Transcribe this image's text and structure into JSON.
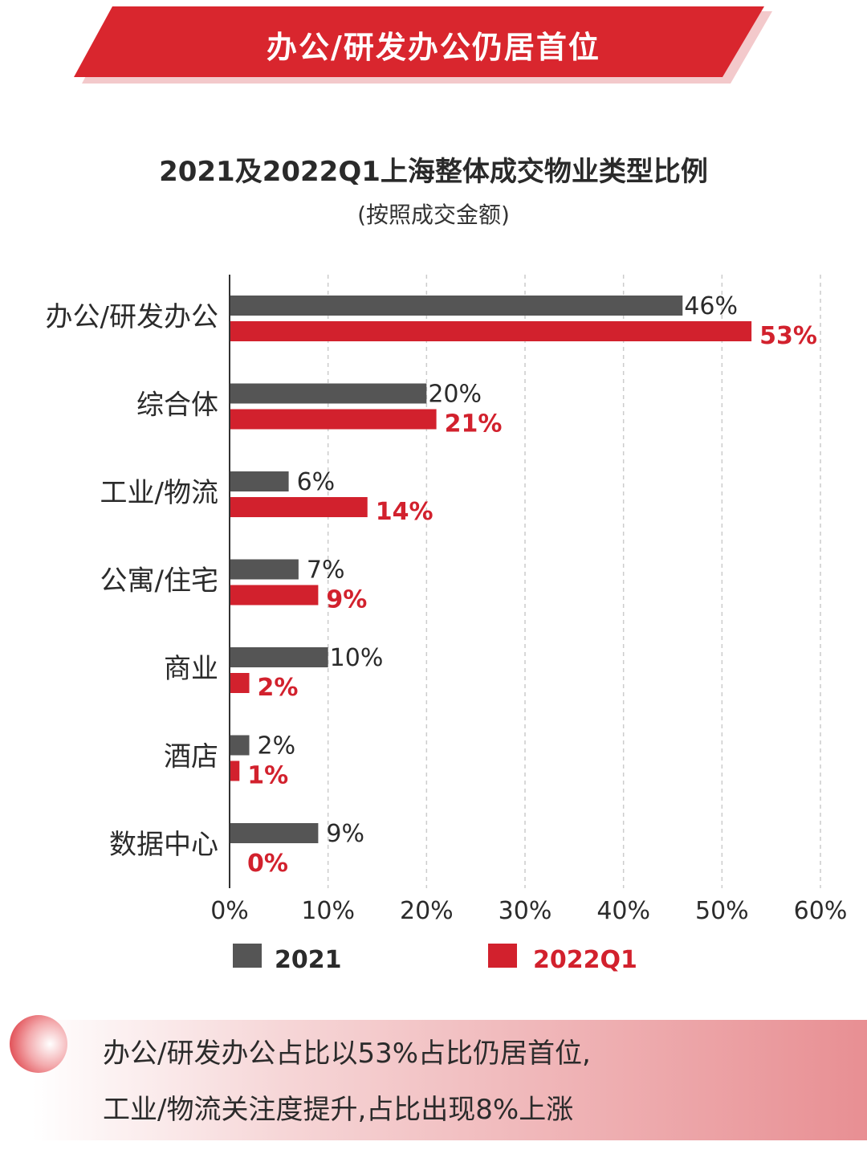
{
  "banner": {
    "title": "办公/研发办公仍居首位"
  },
  "chart_header": {
    "title": "2021及2022Q1上海整体成交物业类型比例",
    "subtitle": "(按照成交金额)"
  },
  "colors": {
    "series_2021": "#555555",
    "series_2022q1": "#d2212d",
    "banner": "#d9262e"
  },
  "chart_data": {
    "type": "bar",
    "orientation": "horizontal",
    "title": "2021及2022Q1上海整体成交物业类型比例",
    "subtitle": "(按照成交金额)",
    "categories": [
      "办公/研发办公",
      "综合体",
      "工业/物流",
      "公寓/住宅",
      "商业",
      "酒店",
      "数据中心"
    ],
    "series": [
      {
        "name": "2021",
        "values": [
          46,
          20,
          6,
          7,
          10,
          2,
          9
        ],
        "labels": [
          "46%",
          "20%",
          "6%",
          "7%",
          "10%",
          "2%",
          "9%"
        ]
      },
      {
        "name": "2022Q1",
        "values": [
          53,
          21,
          14,
          9,
          2,
          1,
          0
        ],
        "labels": [
          "53%",
          "21%",
          "14%",
          "9%",
          "2%",
          "1%",
          "0%"
        ]
      }
    ],
    "xlim": [
      0,
      60
    ],
    "xticks": [
      0,
      10,
      20,
      30,
      40,
      50,
      60
    ],
    "xtick_labels": [
      "0%",
      "10%",
      "20%",
      "30%",
      "40%",
      "50%",
      "60%"
    ],
    "grid": "vertical-dashed",
    "legend_position": "bottom"
  },
  "footer": {
    "line1": "办公/研发办公占比以53%占比仍居首位,",
    "line2": "工业/物流关注度提升,占比出现8%上涨"
  }
}
